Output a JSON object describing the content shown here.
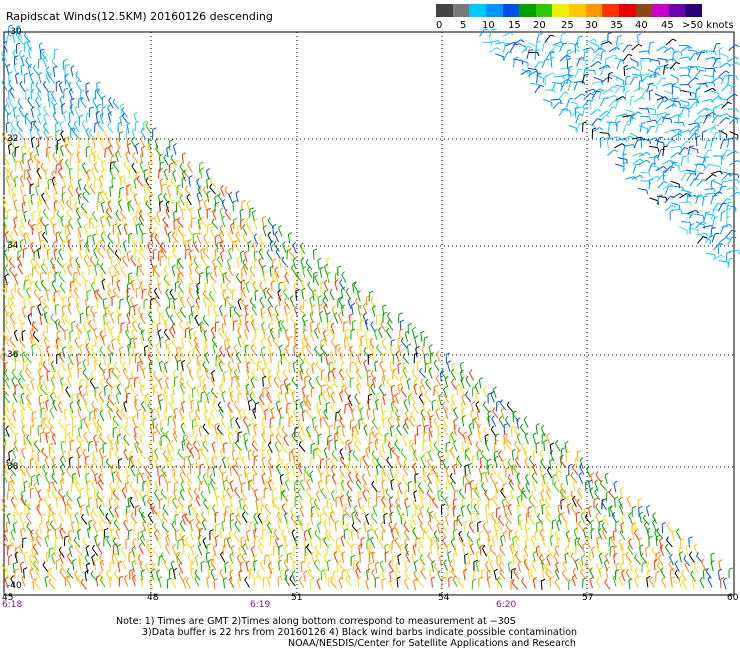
{
  "title": "Rapidscat Winds(12.5KM) 20160126 descending",
  "legend": {
    "colors": [
      "#444444",
      "#7a7a7a",
      "#00c8ff",
      "#0096ff",
      "#0050e6",
      "#00a000",
      "#2cc800",
      "#f0f000",
      "#ffc800",
      "#ff9600",
      "#ff3200",
      "#e60000",
      "#8c4614",
      "#c800c8",
      "#6e00b4",
      "#28007a"
    ],
    "labels": [
      "0",
      "5",
      "10",
      "15",
      "20",
      "25",
      "30",
      "35",
      "40",
      "45",
      ">50 knots"
    ]
  },
  "axes": {
    "lat_labels": [
      "-30",
      "32",
      "34",
      "36",
      "38",
      "-40"
    ],
    "lon_labels": [
      "45",
      "48",
      "51",
      "54",
      "57",
      "60"
    ],
    "time_labels": [
      "6:18",
      "6:19",
      "6:20"
    ]
  },
  "notes": [
    "Note: 1) Times are GMT 2)Times along bottom correspond to measurement at −30S",
    "3)Data buffer is 22 hrs from 20160126 4) Black wind barbs indicate possible contamination",
    "NOAA/NESDIS/Center for Satellite Applications and Research"
  ]
}
